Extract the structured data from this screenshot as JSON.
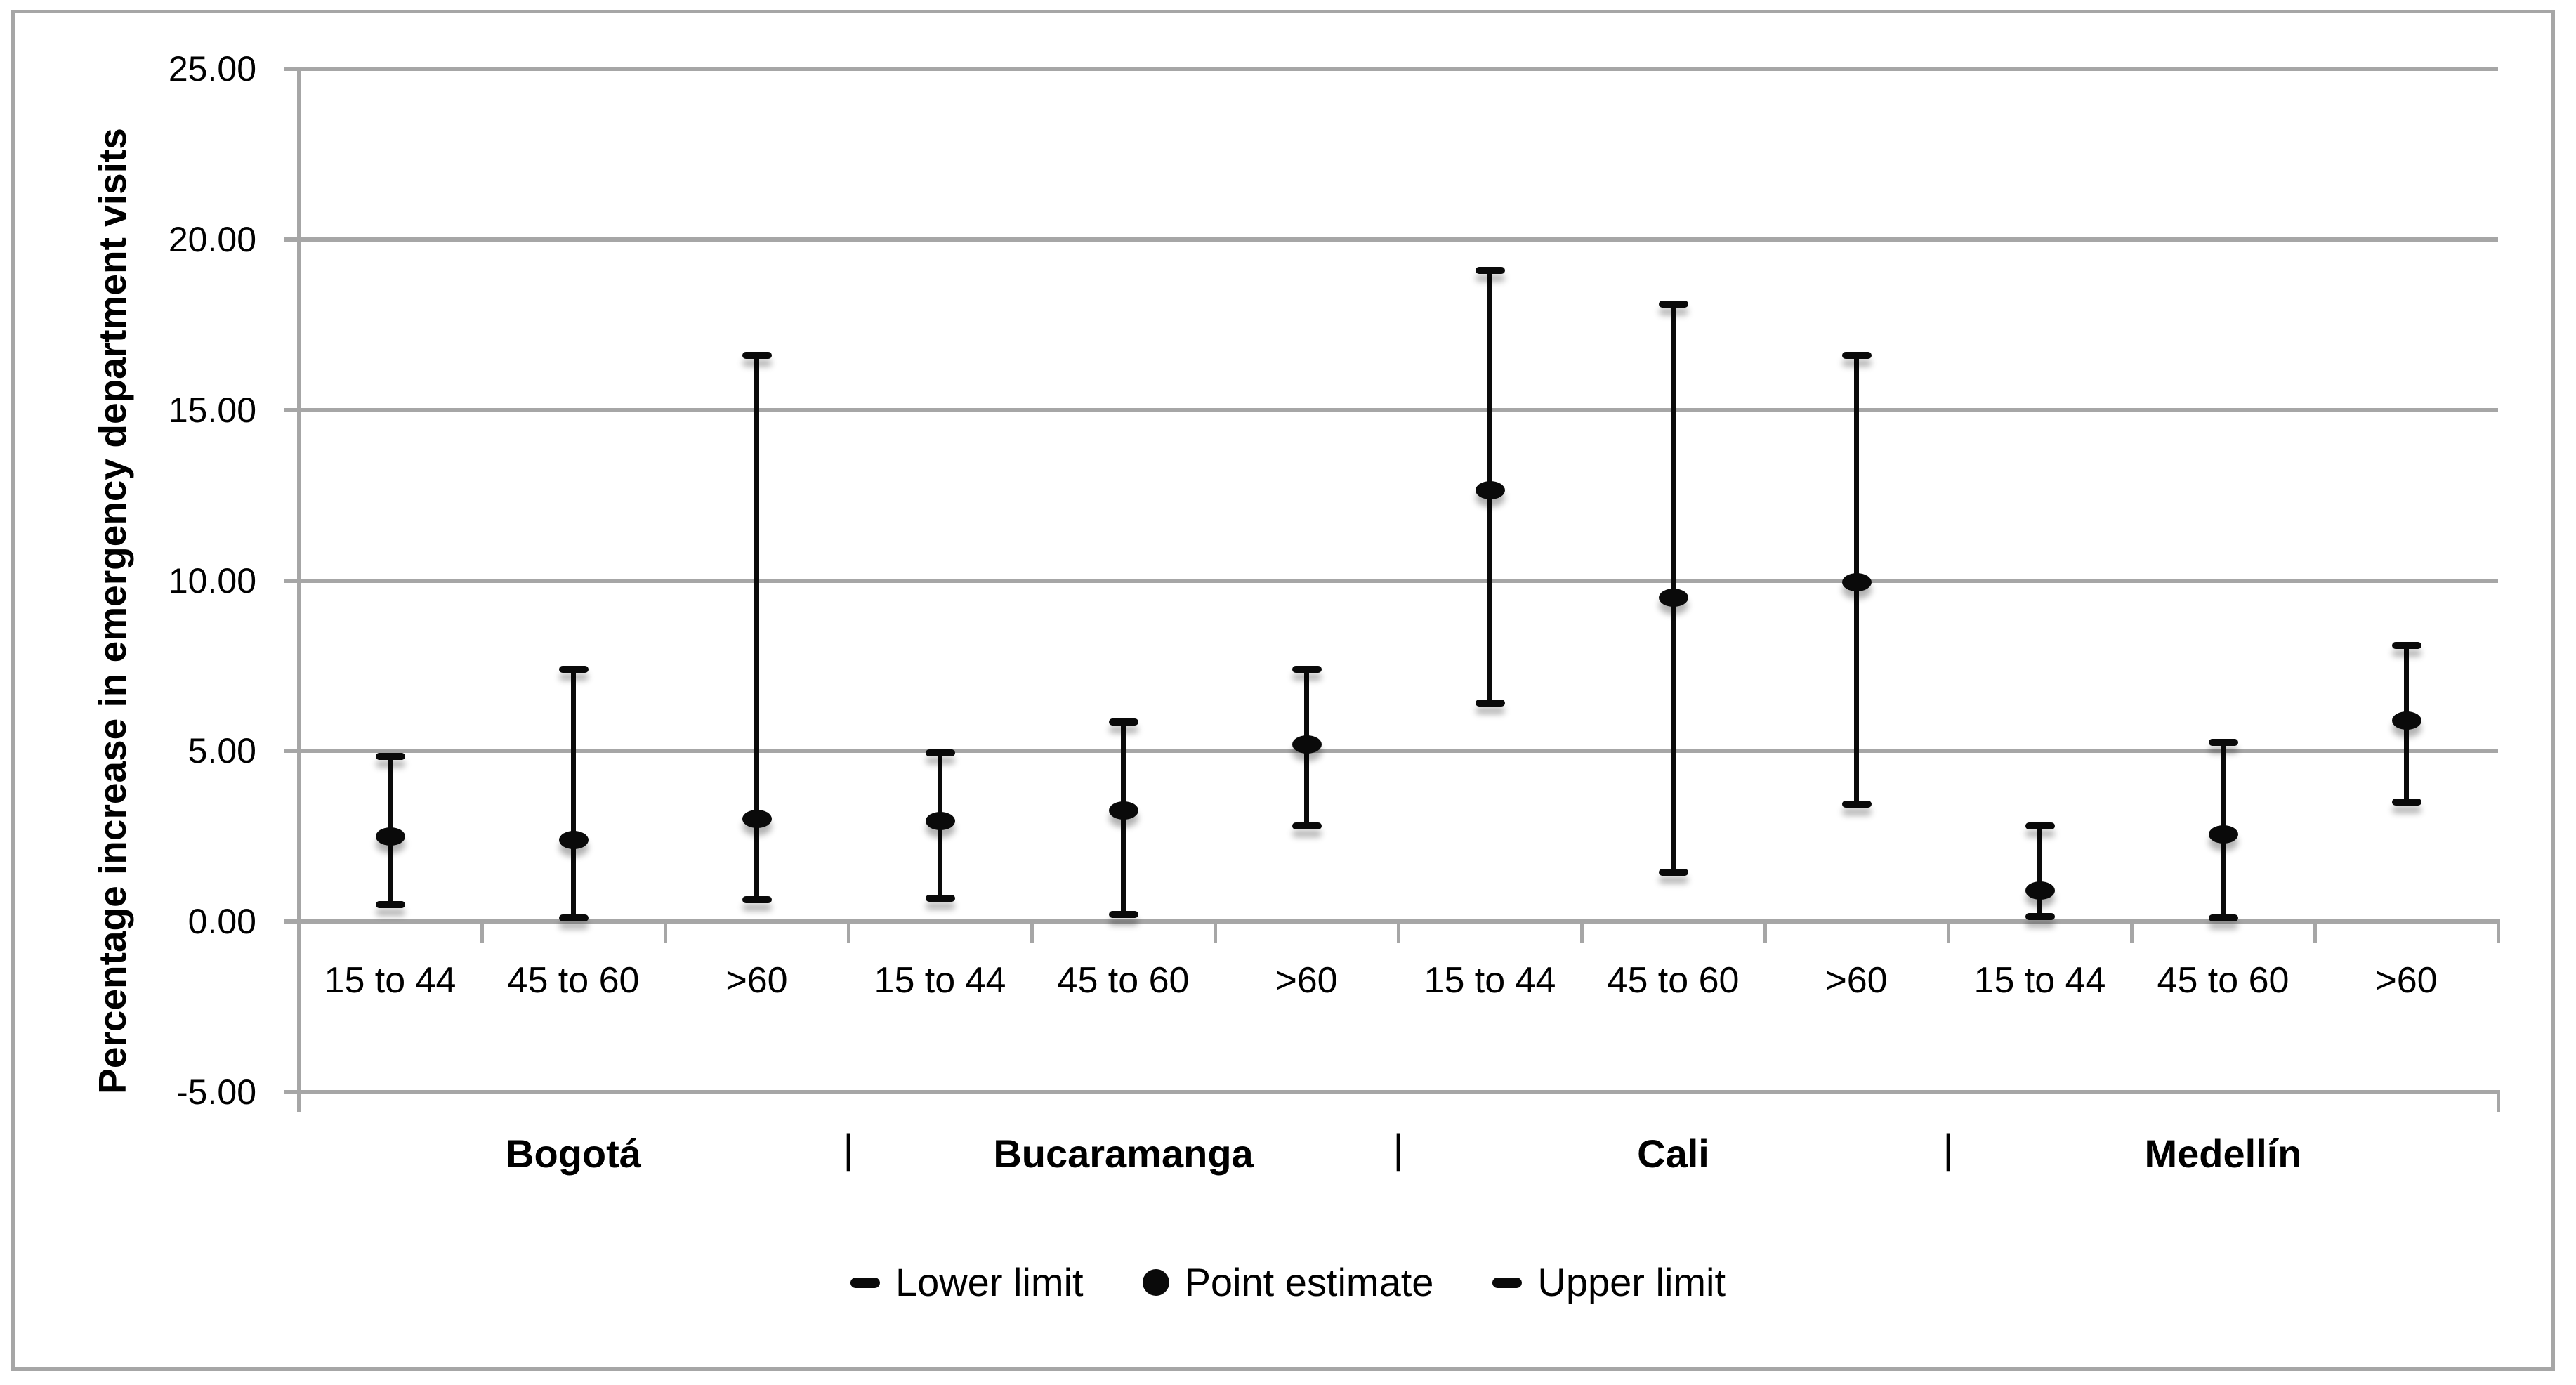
{
  "chart_data": {
    "type": "errorbar",
    "title": "",
    "xlabel": "",
    "ylabel": "Percentage increase in emergency department visits",
    "ylim": [
      -5,
      25
    ],
    "y_tick_step": 5,
    "grid": true,
    "legend_position": "bottom-center",
    "colors": {
      "marker": "#0a0a0a",
      "axis": "#a6a6a6",
      "text": "#000000",
      "background": "#ffffff"
    },
    "y_ticks": [
      {
        "label": "25.00",
        "value": 25
      },
      {
        "label": "20.00",
        "value": 20
      },
      {
        "label": "15.00",
        "value": 15
      },
      {
        "label": "10.00",
        "value": 10
      },
      {
        "label": "5.00",
        "value": 5
      },
      {
        "label": "0.00",
        "value": 0
      },
      {
        "label": "-5.00",
        "value": -5
      }
    ],
    "groups": [
      {
        "city": "Bogotá",
        "separator_after": "|",
        "points": [
          {
            "age": "15 to 44",
            "lower": 0.5,
            "point": 2.5,
            "upper": 4.85
          },
          {
            "age": "45 to 60",
            "lower": 0.1,
            "point": 2.4,
            "upper": 7.4
          },
          {
            "age": ">60",
            "lower": 0.65,
            "point": 3.0,
            "upper": 16.6
          }
        ]
      },
      {
        "city": "Bucaramanga",
        "separator_after": "|",
        "points": [
          {
            "age": "15 to 44",
            "lower": 0.68,
            "point": 2.95,
            "upper": 4.95
          },
          {
            "age": "45 to 60",
            "lower": 0.2,
            "point": 3.25,
            "upper": 5.85
          },
          {
            "age": ">60",
            "lower": 2.8,
            "point": 5.2,
            "upper": 7.4
          }
        ]
      },
      {
        "city": "Cali",
        "separator_after": "|",
        "points": [
          {
            "age": "15 to 44",
            "lower": 6.4,
            "point": 12.65,
            "upper": 19.1
          },
          {
            "age": "45 to 60",
            "lower": 1.45,
            "point": 9.5,
            "upper": 18.1
          },
          {
            "age": ">60",
            "lower": 3.45,
            "point": 9.95,
            "upper": 16.6
          }
        ]
      },
      {
        "city": "Medellín",
        "separator_after": "",
        "points": [
          {
            "age": "15 to 44",
            "lower": 0.15,
            "point": 0.9,
            "upper": 2.8
          },
          {
            "age": "45 to 60",
            "lower": 0.1,
            "point": 2.55,
            "upper": 5.25
          },
          {
            "age": ">60",
            "lower": 3.5,
            "point": 5.9,
            "upper": 8.1
          }
        ]
      }
    ],
    "legend": [
      {
        "label": "Lower limit",
        "marker": "dash"
      },
      {
        "label": "Point estimate",
        "marker": "circle"
      },
      {
        "label": "Upper limit",
        "marker": "dash"
      }
    ]
  }
}
